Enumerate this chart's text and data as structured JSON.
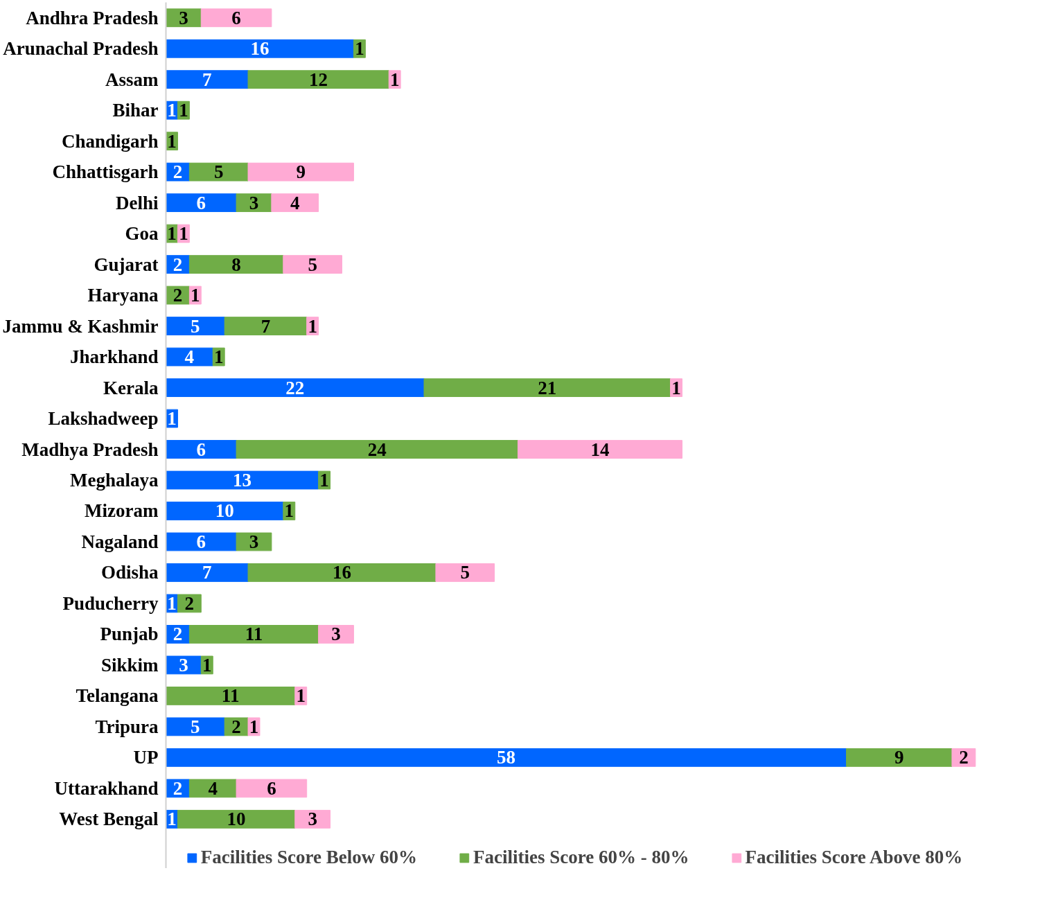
{
  "chart_data": {
    "type": "bar",
    "orientation": "horizontal",
    "stacked": true,
    "data_labels": true,
    "legend": "bottom",
    "grid": false,
    "tick_labels": "y",
    "categories": [
      "Andhra Pradesh",
      "Arunachal Pradesh",
      "Assam",
      "Bihar",
      "Chandigarh",
      "Chhattisgarh",
      "Delhi",
      "Goa",
      "Gujarat",
      "Haryana",
      "Jammu & Kashmir",
      "Jharkhand",
      "Kerala",
      "Lakshadweep",
      "Madhya Pradesh",
      "Meghalaya",
      "Mizoram",
      "Nagaland",
      "Odisha",
      "Puducherry",
      "Punjab",
      "Sikkim",
      "Telangana",
      "Tripura",
      "UP",
      "Uttarakhand",
      "West Bengal"
    ],
    "series": [
      {
        "name": "Facilities Score Below 60%",
        "color": "#0066ff",
        "values": [
          null,
          16,
          7,
          1,
          null,
          2,
          6,
          null,
          2,
          null,
          5,
          4,
          22,
          1,
          6,
          13,
          10,
          6,
          7,
          1,
          2,
          3,
          null,
          5,
          58,
          2,
          1
        ]
      },
      {
        "name": "Facilities Score 60% - 80%",
        "color": "#70ad47",
        "values": [
          3,
          1,
          12,
          1,
          1,
          5,
          3,
          1,
          8,
          2,
          7,
          1,
          21,
          null,
          24,
          1,
          1,
          3,
          16,
          2,
          11,
          1,
          11,
          2,
          9,
          4,
          10
        ]
      },
      {
        "name": "Facilities Score Above 80%",
        "color": "#ffaad4",
        "values": [
          6,
          null,
          1,
          null,
          null,
          9,
          4,
          1,
          5,
          1,
          1,
          null,
          1,
          null,
          14,
          null,
          null,
          null,
          5,
          null,
          3,
          null,
          1,
          1,
          2,
          6,
          3
        ]
      }
    ]
  }
}
